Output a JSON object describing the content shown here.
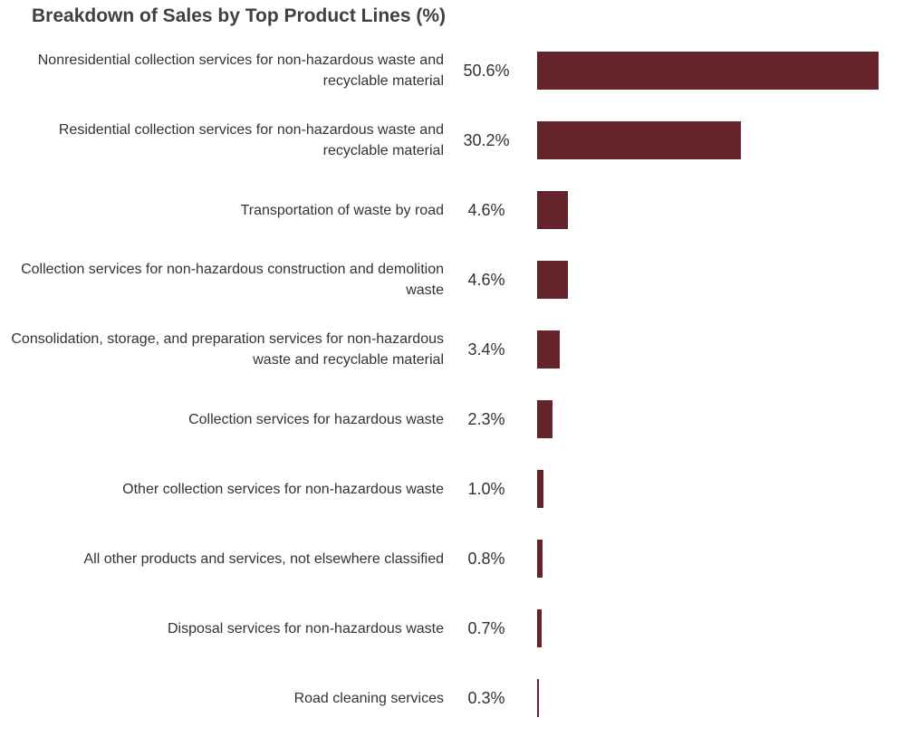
{
  "chart_data": {
    "type": "bar",
    "orientation": "horizontal",
    "title": "Breakdown of Sales by Top Product Lines (%)",
    "categories": [
      "Nonresidential collection services for non-hazardous waste and recyclable material",
      "Residential collection services for non-hazardous waste and recyclable material",
      "Transportation of waste by road",
      "Collection services for non-hazardous construction and demolition waste",
      "Consolidation, storage, and preparation services for non-hazardous waste and recyclable material",
      "Collection services for hazardous waste",
      "Other collection services for non-hazardous waste",
      "All other products and services, not elsewhere classified",
      "Disposal services for non-hazardous waste",
      "Road cleaning services"
    ],
    "values": [
      50.6,
      30.2,
      4.6,
      4.6,
      3.4,
      2.3,
      1.0,
      0.8,
      0.7,
      0.3
    ],
    "value_labels": [
      "50.6%",
      "30.2%",
      "4.6%",
      "4.6%",
      "3.4%",
      "2.3%",
      "1.0%",
      "0.8%",
      "0.7%",
      "0.3%"
    ],
    "color": "#65242a"
  }
}
